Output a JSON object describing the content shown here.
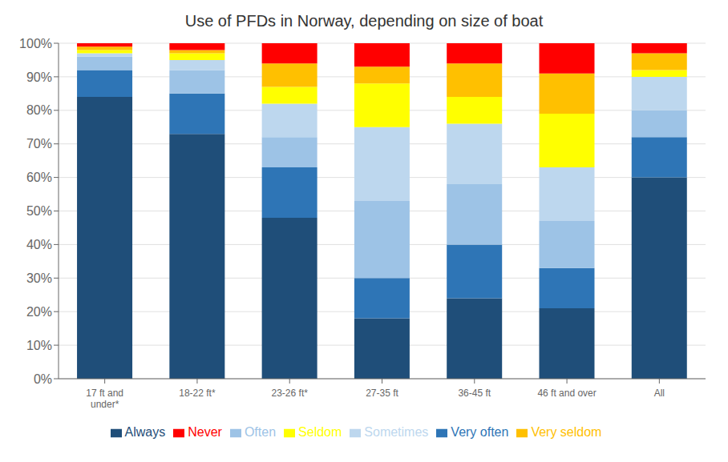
{
  "chart_data": {
    "type": "bar",
    "stacked": true,
    "title": "Use of PFDs in Norway, depending on size of boat",
    "categories": [
      "17 ft and\nunder*",
      "18-22 ft*",
      "23-26 ft*",
      "27-35 ft",
      "36-45 ft",
      "46 ft and over",
      "All"
    ],
    "series": [
      {
        "name": "Always",
        "color": "#1F4E79",
        "values": [
          84,
          73,
          48,
          18,
          24,
          21,
          60
        ]
      },
      {
        "name": "Very often",
        "color": "#2E75B6",
        "values": [
          8,
          12,
          15,
          12,
          16,
          12,
          12
        ]
      },
      {
        "name": "Often",
        "color": "#9DC3E6",
        "values": [
          4,
          7,
          9,
          23,
          18,
          14,
          8
        ]
      },
      {
        "name": "Sometimes",
        "color": "#BDD7EE",
        "values": [
          1,
          3,
          10,
          22,
          18,
          16,
          10
        ]
      },
      {
        "name": "Seldom",
        "color": "#FFFF00",
        "values": [
          1,
          2,
          5,
          13,
          8,
          16,
          2
        ]
      },
      {
        "name": "Very seldom",
        "color": "#FFC000",
        "values": [
          1,
          1,
          7,
          5,
          10,
          12,
          5
        ]
      },
      {
        "name": "Never",
        "color": "#FF0000",
        "values": [
          1,
          2,
          6,
          7,
          6,
          9,
          3
        ]
      }
    ],
    "ylim": [
      0,
      100
    ],
    "yticks": [
      {
        "value": 0,
        "label": "0%"
      },
      {
        "value": 10,
        "label": "10%"
      },
      {
        "value": 20,
        "label": "20%"
      },
      {
        "value": 30,
        "label": "30%"
      },
      {
        "value": 40,
        "label": "40%"
      },
      {
        "value": 50,
        "label": "50%"
      },
      {
        "value": 60,
        "label": "60%"
      },
      {
        "value": 70,
        "label": "70%"
      },
      {
        "value": 80,
        "label": "80%"
      },
      {
        "value": 90,
        "label": "90%"
      },
      {
        "value": 100,
        "label": "100%"
      }
    ],
    "grid": true,
    "legend": "bottom"
  }
}
